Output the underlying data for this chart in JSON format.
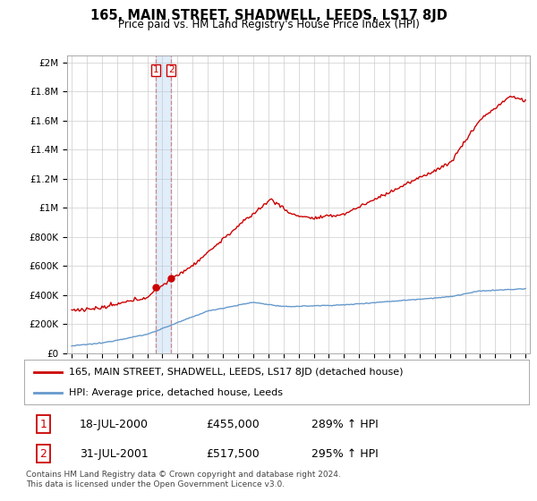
{
  "title": "165, MAIN STREET, SHADWELL, LEEDS, LS17 8JD",
  "subtitle": "Price paid vs. HM Land Registry's House Price Index (HPI)",
  "hpi_label": "HPI: Average price, detached house, Leeds",
  "property_label": "165, MAIN STREET, SHADWELL, LEEDS, LS17 8JD (detached house)",
  "line_red": "#cc0000",
  "line_blue": "#6699cc",
  "transaction1_date": "18-JUL-2000",
  "transaction1_price": 455000,
  "transaction1_hpi": "289% ↑ HPI",
  "transaction1_x": 2000.54,
  "transaction2_date": "31-JUL-2001",
  "transaction2_price": 517500,
  "transaction2_hpi": "295% ↑ HPI",
  "transaction2_x": 2001.58,
  "footer": "Contains HM Land Registry data © Crown copyright and database right 2024.\nThis data is licensed under the Open Government Licence v3.0.",
  "background_color": "#ffffff",
  "grid_color": "#cccccc",
  "yticks": [
    0,
    200000,
    400000,
    600000,
    800000,
    1000000,
    1200000,
    1400000,
    1600000,
    1800000,
    2000000
  ],
  "ylim": [
    0,
    2050000
  ],
  "x_start_year": 1995,
  "x_end_year": 2025
}
